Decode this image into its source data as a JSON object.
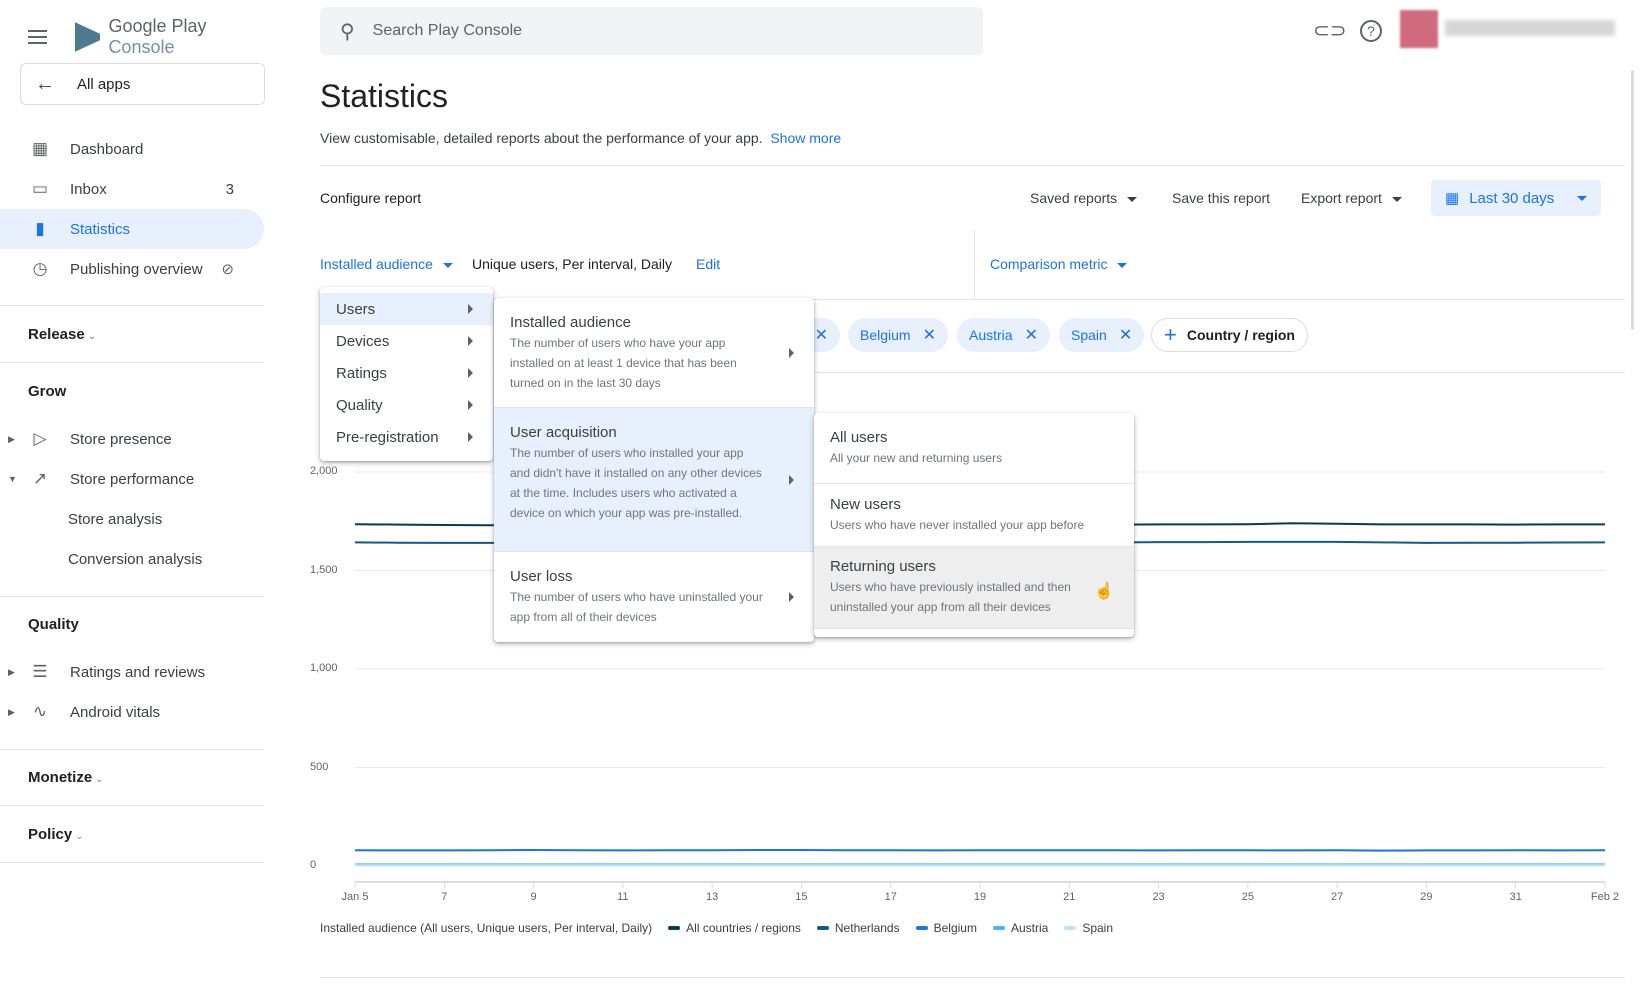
{
  "app": {
    "logo_google_play": "Google Play",
    "logo_console": "Console",
    "all_apps": "All apps"
  },
  "search": {
    "placeholder": "Search Play Console"
  },
  "sidebar": {
    "items": [
      {
        "label": "Dashboard"
      },
      {
        "label": "Inbox",
        "badge": "3"
      },
      {
        "label": "Statistics"
      },
      {
        "label": "Publishing overview"
      }
    ],
    "release": "Release",
    "grow": "Grow",
    "grow_items": [
      {
        "label": "Store presence"
      },
      {
        "label": "Store performance"
      },
      {
        "label": "Store analysis"
      },
      {
        "label": "Conversion analysis"
      }
    ],
    "quality": "Quality",
    "quality_items": [
      {
        "label": "Ratings and reviews"
      },
      {
        "label": "Android vitals"
      }
    ],
    "monetize": "Monetize",
    "policy": "Policy"
  },
  "page": {
    "title": "Statistics",
    "subtitle": "View customisable, detailed reports about the performance of your app.",
    "show_more": "Show more"
  },
  "config": {
    "title": "Configure report",
    "saved_reports": "Saved reports",
    "save_report": "Save this report",
    "export_report": "Export report",
    "date_range": "Last 30 days",
    "metric": "Installed audience",
    "metric_details": "Unique users, Per interval, Daily",
    "edit": "Edit",
    "comparison": "Comparison metric"
  },
  "chips": [
    {
      "label": "Belgium"
    },
    {
      "label": "Austria"
    },
    {
      "label": "Spain"
    }
  ],
  "add_chip": "Country / region",
  "menus": {
    "level1": [
      {
        "label": "Users"
      },
      {
        "label": "Devices"
      },
      {
        "label": "Ratings"
      },
      {
        "label": "Quality"
      },
      {
        "label": "Pre-registration"
      }
    ],
    "level2": [
      {
        "title": "Installed audience",
        "desc": "The number of users who have your app installed on at least 1 device that has been turned on in the last 30 days"
      },
      {
        "title": "User acquisition",
        "desc": "The number of users who installed your app and didn't have it installed on any other devices at the time. Includes users who activated a device on which your app was pre-installed."
      },
      {
        "title": "User loss",
        "desc": "The number of users who have uninstalled your app from all of their devices"
      }
    ],
    "level3": [
      {
        "title": "All users",
        "desc": "All your new and returning users"
      },
      {
        "title": "New users",
        "desc": "Users who have never installed your app before"
      },
      {
        "title": "Returning users",
        "desc": "Users who have previously installed and then uninstalled your app from all their devices"
      }
    ]
  },
  "chart_data": {
    "type": "line",
    "title": "Installed audience (All users, Unique users, Per interval, Daily)",
    "ylim": [
      0,
      2000
    ],
    "yticks": [
      "2,000",
      "1,500",
      "1,000",
      "500",
      "0"
    ],
    "xticks": [
      "Jan 5",
      "7",
      "9",
      "11",
      "13",
      "15",
      "17",
      "19",
      "21",
      "23",
      "25",
      "27",
      "29",
      "31",
      "Feb 2"
    ],
    "n_points": 29,
    "series": [
      {
        "name": "All countries / regions",
        "color": "#0b3954",
        "values": [
          1735,
          1733,
          1731,
          1730,
          1729,
          1729,
          1728,
          1728,
          1729,
          1729,
          1730,
          1730,
          1731,
          1731,
          1731,
          1732,
          1733,
          1733,
          1734,
          1734,
          1735,
          1740,
          1737,
          1734,
          1734,
          1734,
          1733,
          1734,
          1734
        ]
      },
      {
        "name": "Netherlands",
        "color": "#0e5a8a",
        "values": [
          1643,
          1641,
          1640,
          1640,
          1640,
          1639,
          1640,
          1640,
          1641,
          1641,
          1642,
          1642,
          1643,
          1642,
          1643,
          1643,
          1643,
          1643,
          1644,
          1644,
          1645,
          1645,
          1645,
          1643,
          1640,
          1641,
          1641,
          1642,
          1643
        ]
      },
      {
        "name": "Belgium",
        "color": "#1a73e8",
        "values": [
          80,
          79,
          79,
          80,
          81,
          80,
          79,
          80,
          80,
          81,
          81,
          80,
          80,
          79,
          80,
          80,
          80,
          80,
          79,
          80,
          80,
          79,
          80,
          78,
          79,
          79,
          80,
          79,
          80
        ]
      },
      {
        "name": "Austria",
        "color": "#4fb3f6",
        "values": [
          8,
          8,
          8,
          8,
          8,
          8,
          8,
          8,
          8,
          8,
          8,
          8,
          8,
          8,
          8,
          8,
          8,
          8,
          8,
          8,
          8,
          8,
          8,
          8,
          8,
          8,
          8,
          8,
          8
        ]
      },
      {
        "name": "Spain",
        "color": "#bde3fb",
        "values": [
          4,
          4,
          4,
          4,
          4,
          4,
          4,
          4,
          4,
          4,
          4,
          4,
          4,
          4,
          4,
          4,
          4,
          4,
          4,
          4,
          4,
          4,
          4,
          4,
          4,
          4,
          4,
          4,
          4
        ]
      }
    ]
  }
}
